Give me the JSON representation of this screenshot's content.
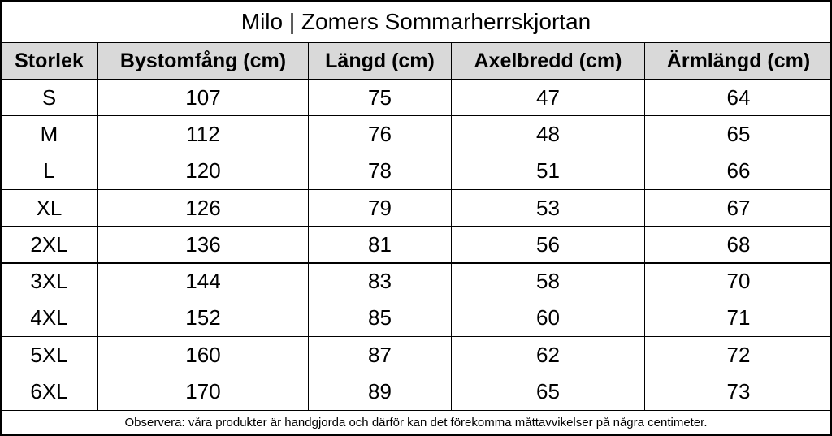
{
  "title": "Milo | Zomers Sommarherrskjortan",
  "table": {
    "header": [
      "Storlek",
      "Bystomfång (cm)",
      "Längd (cm)",
      "Axelbredd (cm)",
      "Ärmlängd (cm)"
    ],
    "rows": [
      [
        "S",
        107,
        75,
        47,
        64
      ],
      [
        "M",
        112,
        76,
        48,
        65
      ],
      [
        "L",
        120,
        78,
        51,
        66
      ],
      [
        "XL",
        126,
        79,
        53,
        67
      ],
      [
        "2XL",
        136,
        81,
        56,
        68
      ],
      [
        "3XL",
        144,
        83,
        58,
        70
      ],
      [
        "4XL",
        152,
        85,
        60,
        71
      ],
      [
        "5XL",
        160,
        87,
        62,
        72
      ],
      [
        "6XL",
        170,
        89,
        65,
        73
      ]
    ]
  },
  "note": "Observera: våra produkter är handgjorda och därför kan det förekomma måttavvikelser på några centimeter."
}
